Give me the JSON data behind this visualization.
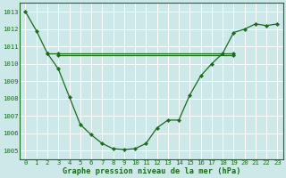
{
  "xlabel": "Graphe pression niveau de la mer (hPa)",
  "bg_color": "#cce8e8",
  "grid_color": "#ffffff",
  "line_color": "#1a6b1a",
  "ylim": [
    1004.5,
    1013.5
  ],
  "xlim": [
    -0.5,
    23.5
  ],
  "yticks": [
    1005,
    1006,
    1007,
    1008,
    1009,
    1010,
    1011,
    1012,
    1013
  ],
  "xtick_labels": [
    "0",
    "1",
    "2",
    "3",
    "4",
    "5",
    "6",
    "7",
    "8",
    "9",
    "10",
    "11",
    "12",
    "13",
    "14",
    "15",
    "16",
    "17",
    "18",
    "19",
    "20",
    "21",
    "22",
    "23"
  ],
  "series1_x": [
    0,
    1,
    2,
    3,
    4,
    5,
    6,
    7,
    8,
    9,
    10,
    11,
    12,
    13,
    14,
    15,
    16,
    17,
    18,
    19,
    20,
    21,
    22,
    23
  ],
  "series1_y": [
    1013.0,
    1011.9,
    1010.6,
    1009.7,
    1008.1,
    1006.5,
    1005.9,
    1005.4,
    1005.1,
    1005.05,
    1005.1,
    1005.4,
    1006.3,
    1006.75,
    1006.75,
    1008.2,
    1009.3,
    1010.0,
    1010.6,
    1011.8,
    1012.0,
    1012.3,
    1012.2,
    1012.3
  ],
  "series2_x": [
    2,
    3,
    19
  ],
  "series2_y": [
    1010.6,
    1010.6,
    1010.6
  ],
  "series3_x": [
    3,
    19
  ],
  "series3_y": [
    1010.5,
    1010.5
  ],
  "marker": "D",
  "markersize": 2.2,
  "linewidth": 0.9
}
